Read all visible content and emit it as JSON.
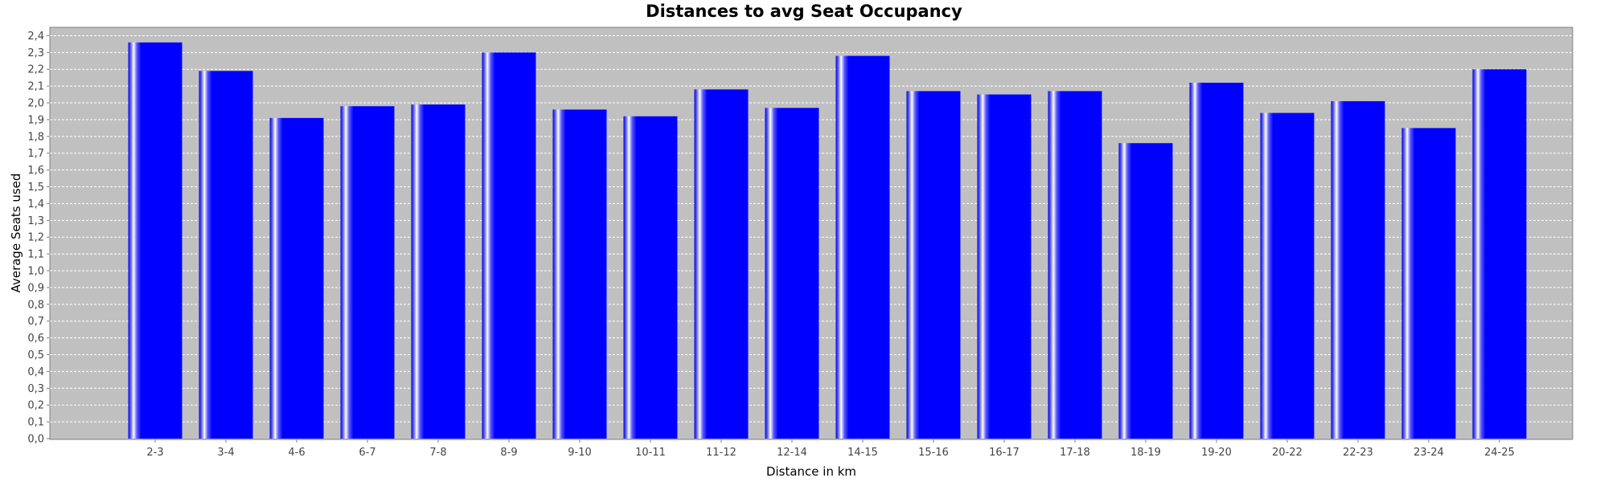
{
  "chart_data": {
    "type": "bar",
    "title": "Distances to avg Seat Occupancy",
    "xlabel": "Distance in km",
    "ylabel": "Average Seats used",
    "ylim": [
      0,
      2.45
    ],
    "yticks": [
      "0,0",
      "0,1",
      "0,2",
      "0,3",
      "0,4",
      "0,5",
      "0,6",
      "0,7",
      "0,8",
      "0,9",
      "1,0",
      "1,1",
      "1,2",
      "1,3",
      "1,4",
      "1,5",
      "1,6",
      "1,7",
      "1,8",
      "1,9",
      "2,0",
      "2,1",
      "2,2",
      "2,3",
      "2,4"
    ],
    "categories": [
      "2-3",
      "3-4",
      "4-6",
      "6-7",
      "7-8",
      "8-9",
      "9-10",
      "10-11",
      "11-12",
      "12-14",
      "14-15",
      "15-16",
      "16-17",
      "17-18",
      "18-19",
      "19-20",
      "20-22",
      "22-23",
      "23-24",
      "24-25"
    ],
    "values": [
      2.36,
      2.19,
      1.91,
      1.98,
      1.99,
      2.3,
      1.96,
      1.92,
      2.08,
      1.97,
      2.28,
      2.07,
      2.05,
      2.07,
      1.76,
      2.12,
      1.94,
      2.01,
      1.85,
      2.2
    ],
    "grid": true,
    "legend": "none",
    "colors": {
      "bar": "#0000ff",
      "plot_background": "#c0c0c0",
      "gridline": "#ffffff"
    }
  }
}
